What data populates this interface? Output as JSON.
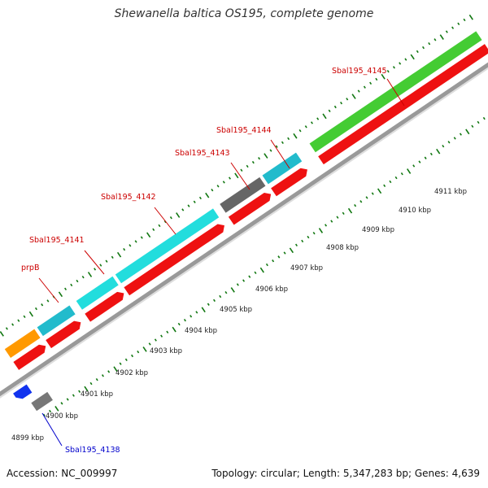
{
  "title": "Shewanella baltica OS195, complete genome",
  "footer": {
    "accession": "Accession: NC_009997",
    "summary": "Topology: circular; Length: 5,347,283 bp; Genes: 4,639"
  },
  "scale": {
    "unit": "kbp",
    "ticks": [
      "4899 kbp",
      "4900 kbp",
      "4901 kbp",
      "4902 kbp",
      "4903 kbp",
      "4904 kbp",
      "4905 kbp",
      "4906 kbp",
      "4907 kbp",
      "4908 kbp",
      "4909 kbp",
      "4910 kbp",
      "4911 kbp"
    ]
  },
  "colors": {
    "cds": "#ee1111",
    "orange": "#ff9900",
    "cyan": "#22dddd",
    "teal": "#22bbcc",
    "gray": "#777777",
    "green": "#44cc33",
    "blue": "#1133ee",
    "backbone": "#999999",
    "tick": "#117711",
    "label_red": "#cc0000",
    "label_blue": "#0000cc"
  },
  "genes": [
    {
      "name": "prpB",
      "label_color": "label_red"
    },
    {
      "name": "Sbal195_4141",
      "label_color": "label_red"
    },
    {
      "name": "Sbal195_4142",
      "label_color": "label_red"
    },
    {
      "name": "Sbal195_4143",
      "label_color": "label_red"
    },
    {
      "name": "Sbal195_4144",
      "label_color": "label_red"
    },
    {
      "name": "Sbal195_4145",
      "label_color": "label_red"
    },
    {
      "name": "Sbal195_4138",
      "label_color": "label_blue"
    }
  ]
}
